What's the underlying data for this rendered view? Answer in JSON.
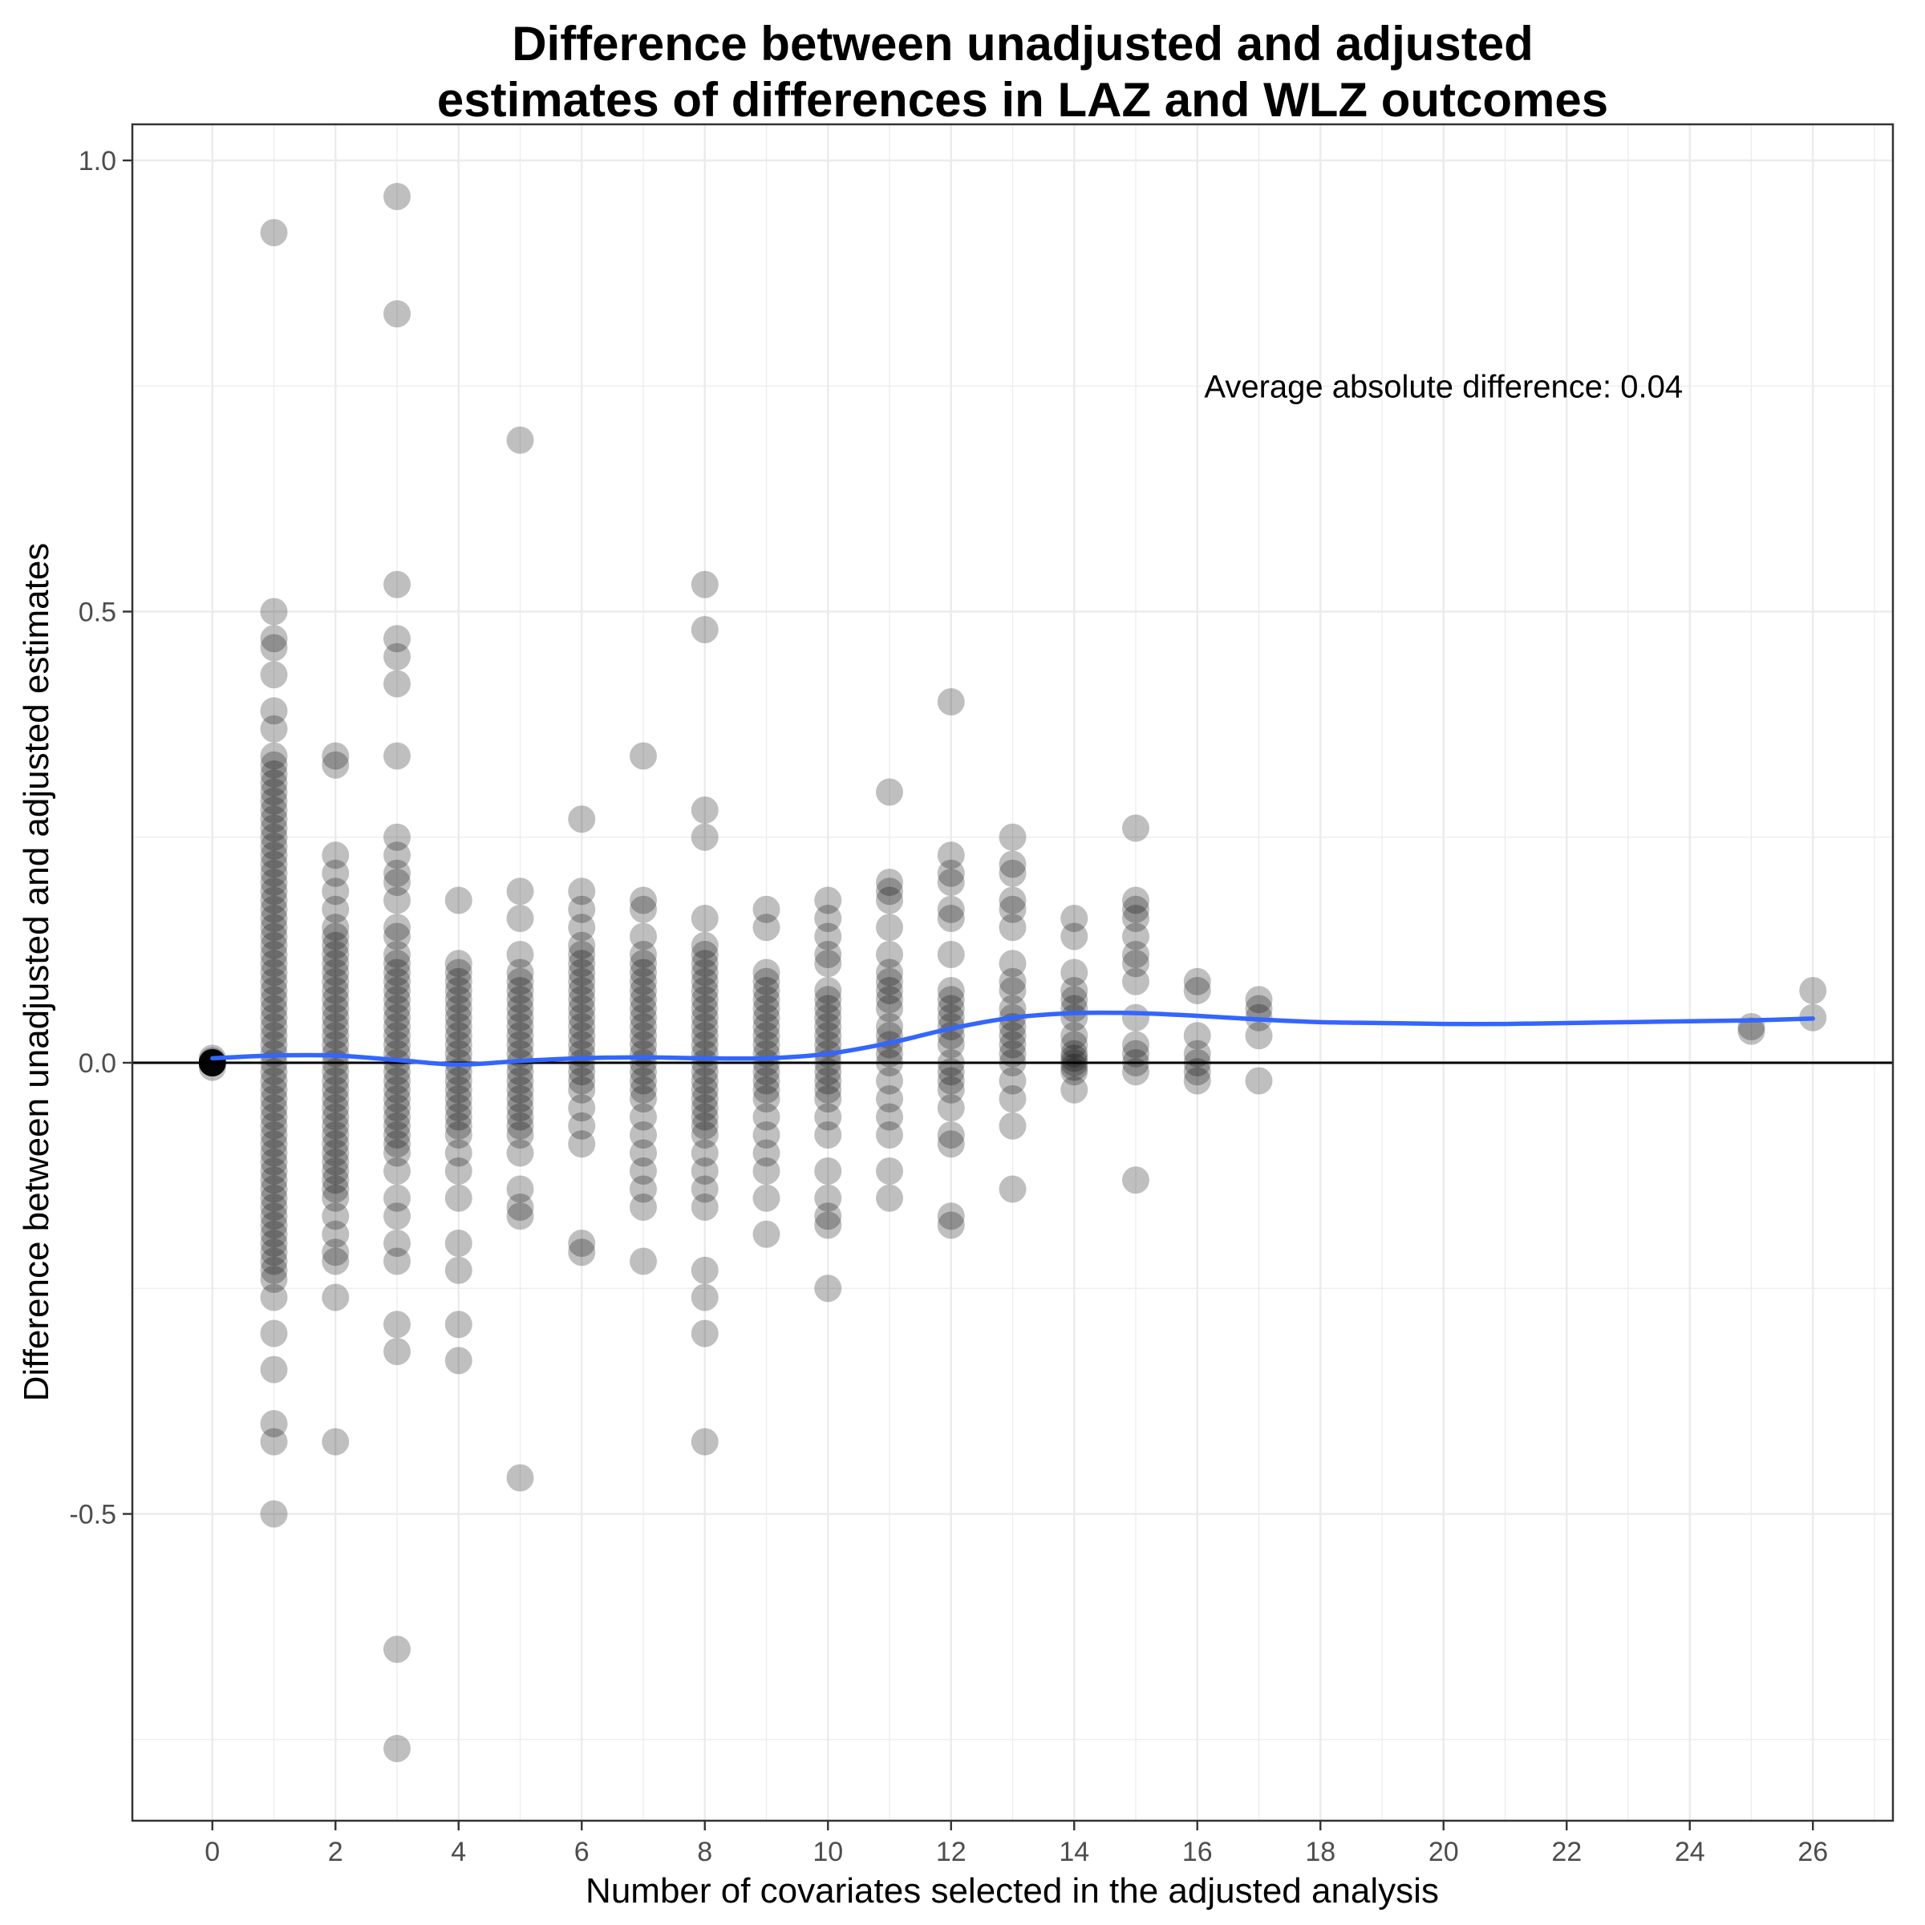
{
  "chart_data": {
    "type": "scatter",
    "title_lines": [
      "Difference between unadjusted and adjusted",
      "estimates of differences in LAZ and WLZ outcomes"
    ],
    "xlabel": "Number of covariates selected in the adjusted analysis",
    "ylabel": "Difference between unadjusted and adjusted estimates",
    "annotation": "Average absolute difference: 0.04",
    "xlim": [
      -1.3,
      27.3
    ],
    "ylim": [
      -0.84,
      1.04
    ],
    "x_ticks": [
      0,
      2,
      4,
      6,
      8,
      10,
      12,
      14,
      16,
      18,
      20,
      22,
      24,
      26
    ],
    "x_tick_labels": [
      "0",
      "2",
      "4",
      "6",
      "8",
      "10",
      "12",
      "14",
      "16",
      "18",
      "20",
      "22",
      "24",
      "26"
    ],
    "y_ticks": [
      -0.5,
      0.0,
      0.5,
      1.0
    ],
    "y_tick_labels": [
      "-0.5",
      "0.0",
      "0.5",
      "1.0"
    ],
    "grid": true,
    "reference_line_y": 0,
    "colors": {
      "points": "#000000",
      "smooth": "#3366ff",
      "grid": "#ebebeb",
      "panel_border": "#333333"
    },
    "series": [
      {
        "type": "points",
        "columns": [
          {
            "x": 0,
            "values": [
              0.0,
              0.0,
              0.0,
              0.0,
              0.0,
              0.0,
              0.0,
              0.0,
              0.0,
              0.0,
              0.005,
              -0.005,
              0.002
            ]
          },
          {
            "x": 1,
            "values": [
              0.92,
              0.5,
              0.47,
              0.46,
              0.43,
              0.39,
              0.37,
              0.34,
              0.33,
              0.32,
              0.31,
              0.3,
              0.29,
              0.28,
              0.27,
              0.26,
              0.25,
              0.24,
              0.23,
              0.22,
              0.21,
              0.2,
              0.19,
              0.18,
              0.17,
              0.16,
              0.15,
              0.14,
              0.13,
              0.12,
              0.11,
              0.1,
              0.09,
              0.08,
              0.07,
              0.06,
              0.05,
              0.04,
              0.03,
              0.02,
              0.01,
              0.0,
              -0.01,
              -0.02,
              -0.03,
              -0.04,
              -0.05,
              -0.06,
              -0.07,
              -0.08,
              -0.09,
              -0.1,
              -0.11,
              -0.12,
              -0.13,
              -0.14,
              -0.15,
              -0.16,
              -0.17,
              -0.18,
              -0.19,
              -0.2,
              -0.21,
              -0.22,
              -0.23,
              -0.24,
              -0.26,
              -0.3,
              -0.34,
              -0.4,
              -0.42,
              -0.5
            ]
          },
          {
            "x": 2,
            "values": [
              0.34,
              0.33,
              0.23,
              0.21,
              0.19,
              0.17,
              0.15,
              0.14,
              0.13,
              0.12,
              0.11,
              0.1,
              0.09,
              0.08,
              0.07,
              0.06,
              0.05,
              0.04,
              0.03,
              0.02,
              0.01,
              0.0,
              -0.01,
              -0.02,
              -0.03,
              -0.04,
              -0.05,
              -0.06,
              -0.07,
              -0.08,
              -0.09,
              -0.1,
              -0.11,
              -0.12,
              -0.13,
              -0.14,
              -0.15,
              -0.17,
              -0.19,
              -0.21,
              -0.22,
              -0.26,
              -0.42
            ]
          },
          {
            "x": 3,
            "values": [
              0.96,
              0.83,
              0.53,
              0.47,
              0.45,
              0.42,
              0.34,
              0.25,
              0.23,
              0.21,
              0.2,
              0.18,
              0.15,
              0.14,
              0.12,
              0.11,
              0.1,
              0.09,
              0.08,
              0.07,
              0.06,
              0.05,
              0.04,
              0.03,
              0.02,
              0.01,
              0.0,
              -0.01,
              -0.02,
              -0.03,
              -0.04,
              -0.05,
              -0.06,
              -0.07,
              -0.08,
              -0.09,
              -0.1,
              -0.12,
              -0.15,
              -0.17,
              -0.2,
              -0.22,
              -0.29,
              -0.32,
              -0.65,
              -0.76
            ]
          },
          {
            "x": 4,
            "values": [
              0.18,
              0.11,
              0.1,
              0.09,
              0.08,
              0.07,
              0.06,
              0.05,
              0.04,
              0.03,
              0.02,
              0.01,
              0.0,
              -0.01,
              -0.02,
              -0.03,
              -0.04,
              -0.05,
              -0.06,
              -0.07,
              -0.08,
              -0.1,
              -0.12,
              -0.15,
              -0.2,
              -0.23,
              -0.29,
              -0.33
            ]
          },
          {
            "x": 5,
            "values": [
              0.69,
              0.19,
              0.16,
              0.12,
              0.1,
              0.09,
              0.08,
              0.07,
              0.06,
              0.05,
              0.04,
              0.03,
              0.02,
              0.01,
              0.0,
              -0.01,
              -0.02,
              -0.03,
              -0.04,
              -0.05,
              -0.06,
              -0.07,
              -0.08,
              -0.1,
              -0.14,
              -0.16,
              -0.17,
              -0.46
            ]
          },
          {
            "x": 6,
            "values": [
              0.27,
              0.19,
              0.17,
              0.15,
              0.13,
              0.12,
              0.11,
              0.1,
              0.09,
              0.08,
              0.07,
              0.06,
              0.05,
              0.04,
              0.03,
              0.02,
              0.01,
              0.0,
              -0.01,
              -0.02,
              -0.03,
              -0.05,
              -0.07,
              -0.09,
              -0.2,
              -0.21
            ]
          },
          {
            "x": 7,
            "values": [
              0.34,
              0.18,
              0.17,
              0.14,
              0.12,
              0.11,
              0.1,
              0.09,
              0.08,
              0.07,
              0.06,
              0.05,
              0.04,
              0.03,
              0.02,
              0.01,
              0.0,
              -0.01,
              -0.02,
              -0.03,
              -0.04,
              -0.06,
              -0.08,
              -0.1,
              -0.12,
              -0.14,
              -0.16,
              -0.22
            ]
          },
          {
            "x": 8,
            "values": [
              0.53,
              0.48,
              0.28,
              0.25,
              0.16,
              0.13,
              0.12,
              0.11,
              0.1,
              0.09,
              0.08,
              0.07,
              0.06,
              0.05,
              0.04,
              0.03,
              0.02,
              0.01,
              0.0,
              -0.01,
              -0.02,
              -0.03,
              -0.04,
              -0.05,
              -0.06,
              -0.07,
              -0.08,
              -0.1,
              -0.12,
              -0.14,
              -0.16,
              -0.23,
              -0.26,
              -0.3,
              -0.42
            ]
          },
          {
            "x": 9,
            "values": [
              0.17,
              0.15,
              0.1,
              0.09,
              0.08,
              0.07,
              0.06,
              0.05,
              0.04,
              0.03,
              0.02,
              0.01,
              0.0,
              -0.01,
              -0.02,
              -0.03,
              -0.04,
              -0.06,
              -0.08,
              -0.1,
              -0.12,
              -0.15,
              -0.19
            ]
          },
          {
            "x": 10,
            "values": [
              0.18,
              0.16,
              0.14,
              0.12,
              0.11,
              0.08,
              0.07,
              0.06,
              0.05,
              0.04,
              0.03,
              0.02,
              0.01,
              0.0,
              -0.01,
              -0.02,
              -0.03,
              -0.04,
              -0.06,
              -0.08,
              -0.12,
              -0.15,
              -0.17,
              -0.18,
              -0.25
            ]
          },
          {
            "x": 11,
            "values": [
              0.3,
              0.2,
              0.19,
              0.18,
              0.15,
              0.12,
              0.1,
              0.09,
              0.08,
              0.07,
              0.06,
              0.04,
              0.03,
              0.02,
              0.01,
              0.0,
              -0.02,
              -0.04,
              -0.06,
              -0.08,
              -0.12,
              -0.15
            ]
          },
          {
            "x": 12,
            "values": [
              0.4,
              0.23,
              0.21,
              0.2,
              0.17,
              0.16,
              0.12,
              0.08,
              0.07,
              0.06,
              0.05,
              0.04,
              0.03,
              0.02,
              0.0,
              -0.01,
              -0.02,
              -0.03,
              -0.05,
              -0.08,
              -0.09,
              -0.17,
              -0.18
            ]
          },
          {
            "x": 13,
            "values": [
              0.25,
              0.22,
              0.21,
              0.18,
              0.17,
              0.15,
              0.11,
              0.09,
              0.08,
              0.06,
              0.05,
              0.04,
              0.03,
              0.02,
              0.01,
              0.0,
              -0.02,
              -0.04,
              -0.07,
              -0.14
            ]
          },
          {
            "x": 14,
            "values": [
              0.16,
              0.14,
              0.1,
              0.08,
              0.07,
              0.06,
              0.05,
              0.03,
              0.02,
              0.01,
              0.005,
              0.0,
              -0.005,
              -0.01,
              -0.03
            ]
          },
          {
            "x": 15,
            "values": [
              0.26,
              0.18,
              0.17,
              0.16,
              0.14,
              0.12,
              0.11,
              0.09,
              0.05,
              0.02,
              0.01,
              0.0,
              -0.01,
              -0.13
            ]
          },
          {
            "x": 16,
            "values": [
              0.09,
              0.08,
              0.03,
              0.01,
              0.0,
              -0.01,
              -0.02
            ]
          },
          {
            "x": 17,
            "values": [
              0.07,
              0.06,
              0.05,
              0.03,
              -0.02
            ]
          },
          {
            "x": 25,
            "values": [
              0.04,
              0.035
            ]
          },
          {
            "x": 26,
            "values": [
              0.08,
              0.05
            ]
          }
        ]
      },
      {
        "type": "smooth",
        "x": [
          0,
          1,
          2,
          3,
          4,
          5,
          6,
          7,
          8,
          9,
          10,
          11,
          12,
          13,
          14,
          15,
          16,
          17,
          18,
          19,
          20,
          21,
          22,
          23,
          24,
          25,
          26
        ],
        "y": [
          0.005,
          0.008,
          0.008,
          0.003,
          -0.002,
          0.002,
          0.005,
          0.006,
          0.005,
          0.005,
          0.01,
          0.022,
          0.038,
          0.05,
          0.055,
          0.055,
          0.052,
          0.048,
          0.045,
          0.044,
          0.043,
          0.043,
          0.044,
          0.045,
          0.046,
          0.047,
          0.049
        ]
      }
    ]
  }
}
